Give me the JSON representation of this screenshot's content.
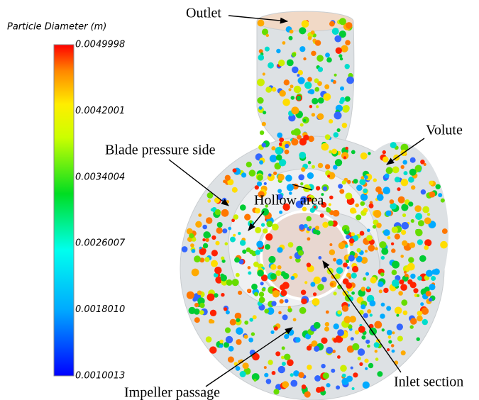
{
  "colorbar": {
    "title": "Particle Diameter (m)",
    "ticks": [
      "0.0049998",
      "0.0042001",
      "0.0034004",
      "0.0026007",
      "0.0018010",
      "0.0010013"
    ]
  },
  "labels": {
    "outlet": "Outlet",
    "volute": "Volute",
    "blade_pressure_side": "Blade pressure side",
    "hollow_area": "Hollow area",
    "inlet_section": "Inlet section",
    "impeller_passage": "Impeller passage"
  }
}
